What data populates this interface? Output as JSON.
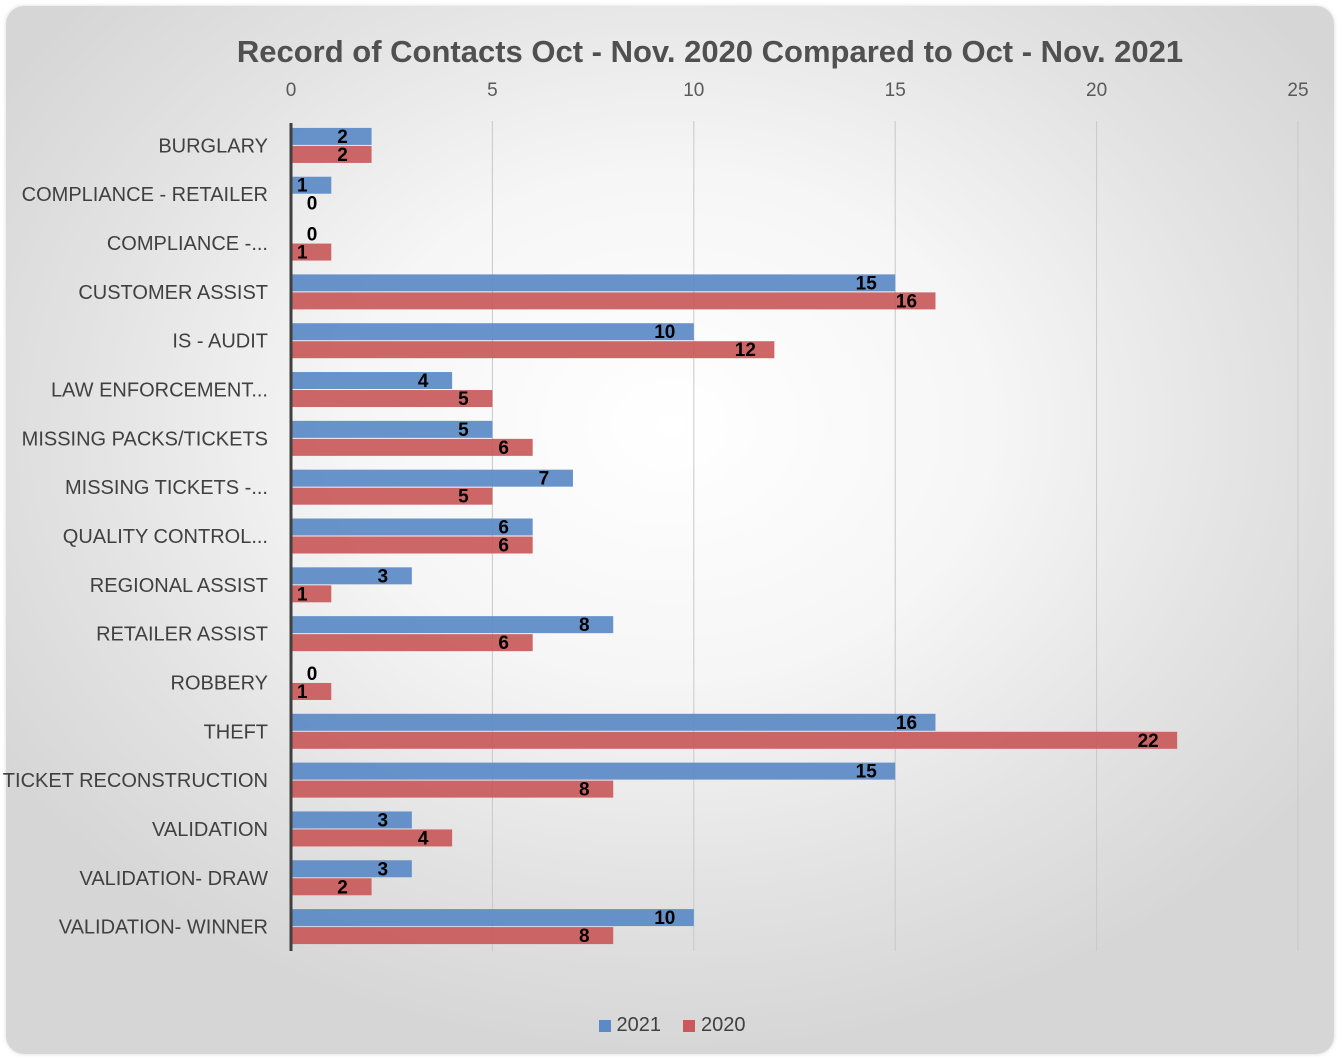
{
  "chart_data": {
    "type": "bar",
    "orientation": "horizontal",
    "title": "Record of Contacts Oct - Nov. 2020 Compared to Oct - Nov. 2021",
    "categories": [
      "BURGLARY",
      "COMPLIANCE - RETAILER",
      "COMPLIANCE -...",
      "CUSTOMER ASSIST",
      "IS - AUDIT",
      "LAW ENFORCEMENT...",
      "MISSING PACKS/TICKETS",
      "MISSING TICKETS -...",
      "QUALITY CONTROL...",
      "REGIONAL ASSIST",
      "RETAILER ASSIST",
      "ROBBERY",
      "THEFT",
      "TICKET RECONSTRUCTION",
      "VALIDATION",
      "VALIDATION- DRAW",
      "VALIDATION- WINNER"
    ],
    "series": [
      {
        "name": "2021",
        "color": "#5b8ac6",
        "values": [
          2,
          1,
          0,
          15,
          10,
          4,
          5,
          7,
          6,
          3,
          8,
          0,
          16,
          15,
          3,
          3,
          10
        ]
      },
      {
        "name": "2020",
        "color": "#c9595a",
        "values": [
          2,
          0,
          1,
          16,
          12,
          5,
          6,
          5,
          6,
          1,
          6,
          1,
          22,
          8,
          4,
          2,
          8
        ]
      }
    ],
    "xlim": [
      0,
      25
    ],
    "xticks": [
      "0",
      "5",
      "10",
      "15",
      "20",
      "25"
    ],
    "axis_position": "top",
    "grid": true,
    "legend_position": "bottom"
  }
}
